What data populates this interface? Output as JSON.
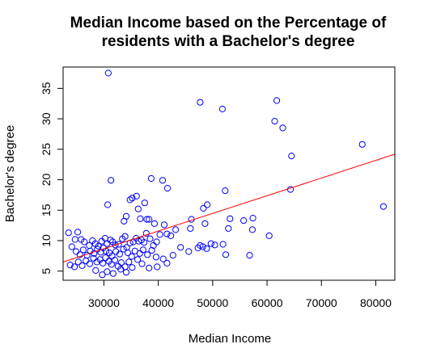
{
  "chart_data": {
    "type": "scatter",
    "title_lines": [
      "Median Income based on the Percentage of",
      "residents with a Bachelor's degree"
    ],
    "xlabel": "Median Income",
    "ylabel": "Bachelor's degree",
    "xlim": [
      22500,
      83500
    ],
    "ylim": [
      3.5,
      38.5
    ],
    "xticks": [
      30000,
      40000,
      50000,
      60000,
      70000,
      80000
    ],
    "yticks": [
      5,
      10,
      15,
      20,
      25,
      30,
      35
    ],
    "point_color": "#0000ff",
    "line_color": "#ff0000",
    "regression_line": {
      "x": [
        22500,
        83500
      ],
      "y": [
        6.5,
        24.2
      ]
    },
    "points": [
      [
        30800,
        37.5
      ],
      [
        47700,
        32.7
      ],
      [
        61800,
        33.0
      ],
      [
        51800,
        31.6
      ],
      [
        61400,
        29.6
      ],
      [
        62900,
        28.5
      ],
      [
        77500,
        25.8
      ],
      [
        64500,
        23.9
      ],
      [
        31300,
        19.9
      ],
      [
        38700,
        20.2
      ],
      [
        40800,
        19.9
      ],
      [
        41700,
        18.6
      ],
      [
        52300,
        18.2
      ],
      [
        64300,
        18.4
      ],
      [
        81400,
        15.6
      ],
      [
        35200,
        17.0
      ],
      [
        36000,
        17.3
      ],
      [
        34800,
        16.7
      ],
      [
        37500,
        16.2
      ],
      [
        30700,
        15.9
      ],
      [
        36300,
        15.2
      ],
      [
        49000,
        15.9
      ],
      [
        48300,
        15.3
      ],
      [
        33700,
        13.2
      ],
      [
        34100,
        14.0
      ],
      [
        36700,
        13.6
      ],
      [
        37900,
        13.5
      ],
      [
        38300,
        13.5
      ],
      [
        39300,
        12.8
      ],
      [
        41100,
        12.6
      ],
      [
        46100,
        13.5
      ],
      [
        45900,
        12.0
      ],
      [
        48600,
        12.8
      ],
      [
        53200,
        13.6
      ],
      [
        55700,
        13.3
      ],
      [
        57400,
        13.7
      ],
      [
        52900,
        12.0
      ],
      [
        57300,
        11.8
      ],
      [
        60400,
        10.8
      ],
      [
        23500,
        11.3
      ],
      [
        25200,
        11.4
      ],
      [
        24700,
        10.2
      ],
      [
        25800,
        10.2
      ],
      [
        26400,
        9.8
      ],
      [
        27300,
        9.2
      ],
      [
        27900,
        10.0
      ],
      [
        28400,
        9.5
      ],
      [
        29000,
        9.1
      ],
      [
        29600,
        9.9
      ],
      [
        30200,
        10.4
      ],
      [
        30600,
        9.5
      ],
      [
        31200,
        10.1
      ],
      [
        31600,
        9.8
      ],
      [
        32100,
        9.3
      ],
      [
        32700,
        9.4
      ],
      [
        33400,
        10.3
      ],
      [
        33900,
        10.7
      ],
      [
        34200,
        8.9
      ],
      [
        34800,
        9.6
      ],
      [
        35400,
        9.8
      ],
      [
        35900,
        10.4
      ],
      [
        36400,
        9.9
      ],
      [
        36900,
        10.1
      ],
      [
        37400,
        9.7
      ],
      [
        37800,
        11.2
      ],
      [
        38500,
        10.3
      ],
      [
        39100,
        9.2
      ],
      [
        39700,
        9.8
      ],
      [
        40300,
        11.0
      ],
      [
        41600,
        11.1
      ],
      [
        42300,
        10.8
      ],
      [
        43200,
        11.8
      ],
      [
        24100,
        9.0
      ],
      [
        24900,
        8.2
      ],
      [
        25600,
        7.7
      ],
      [
        26200,
        8.5
      ],
      [
        26900,
        7.6
      ],
      [
        27500,
        8.3
      ],
      [
        28200,
        7.9
      ],
      [
        28800,
        8.6
      ],
      [
        29400,
        8.1
      ],
      [
        29900,
        8.8
      ],
      [
        30400,
        8.3
      ],
      [
        31000,
        8.0
      ],
      [
        31500,
        7.5
      ],
      [
        32200,
        8.2
      ],
      [
        32900,
        7.8
      ],
      [
        33600,
        8.6
      ],
      [
        34400,
        8.0
      ],
      [
        35100,
        7.4
      ],
      [
        35700,
        8.3
      ],
      [
        36600,
        7.9
      ],
      [
        37200,
        8.5
      ],
      [
        38000,
        7.7
      ],
      [
        38800,
        8.4
      ],
      [
        39600,
        7.3
      ],
      [
        40900,
        7.0
      ],
      [
        42700,
        7.6
      ],
      [
        44100,
        8.9
      ],
      [
        45600,
        8.2
      ],
      [
        47300,
        8.8
      ],
      [
        47700,
        9.2
      ],
      [
        48200,
        9.0
      ],
      [
        48900,
        8.7
      ],
      [
        49700,
        9.5
      ],
      [
        50400,
        9.3
      ],
      [
        51900,
        9.4
      ],
      [
        52400,
        7.7
      ],
      [
        56800,
        7.6
      ],
      [
        23800,
        6.0
      ],
      [
        24600,
        5.7
      ],
      [
        25300,
        6.5
      ],
      [
        26000,
        5.9
      ],
      [
        26700,
        6.7
      ],
      [
        27400,
        6.2
      ],
      [
        28100,
        7.1
      ],
      [
        28700,
        6.5
      ],
      [
        29300,
        6.9
      ],
      [
        29800,
        6.3
      ],
      [
        30300,
        7.2
      ],
      [
        30900,
        6.6
      ],
      [
        31400,
        6.1
      ],
      [
        32000,
        6.8
      ],
      [
        32600,
        5.8
      ],
      [
        33200,
        6.4
      ],
      [
        33900,
        5.7
      ],
      [
        34600,
        6.5
      ],
      [
        35200,
        5.6
      ],
      [
        36200,
        6.9
      ],
      [
        37000,
        6.2
      ],
      [
        38300,
        5.5
      ],
      [
        39800,
        5.7
      ],
      [
        41600,
        6.3
      ],
      [
        28500,
        5.1
      ],
      [
        29700,
        4.4
      ],
      [
        30600,
        4.9
      ],
      [
        31700,
        4.6
      ],
      [
        33100,
        5.3
      ],
      [
        34100,
        4.8
      ]
    ]
  }
}
